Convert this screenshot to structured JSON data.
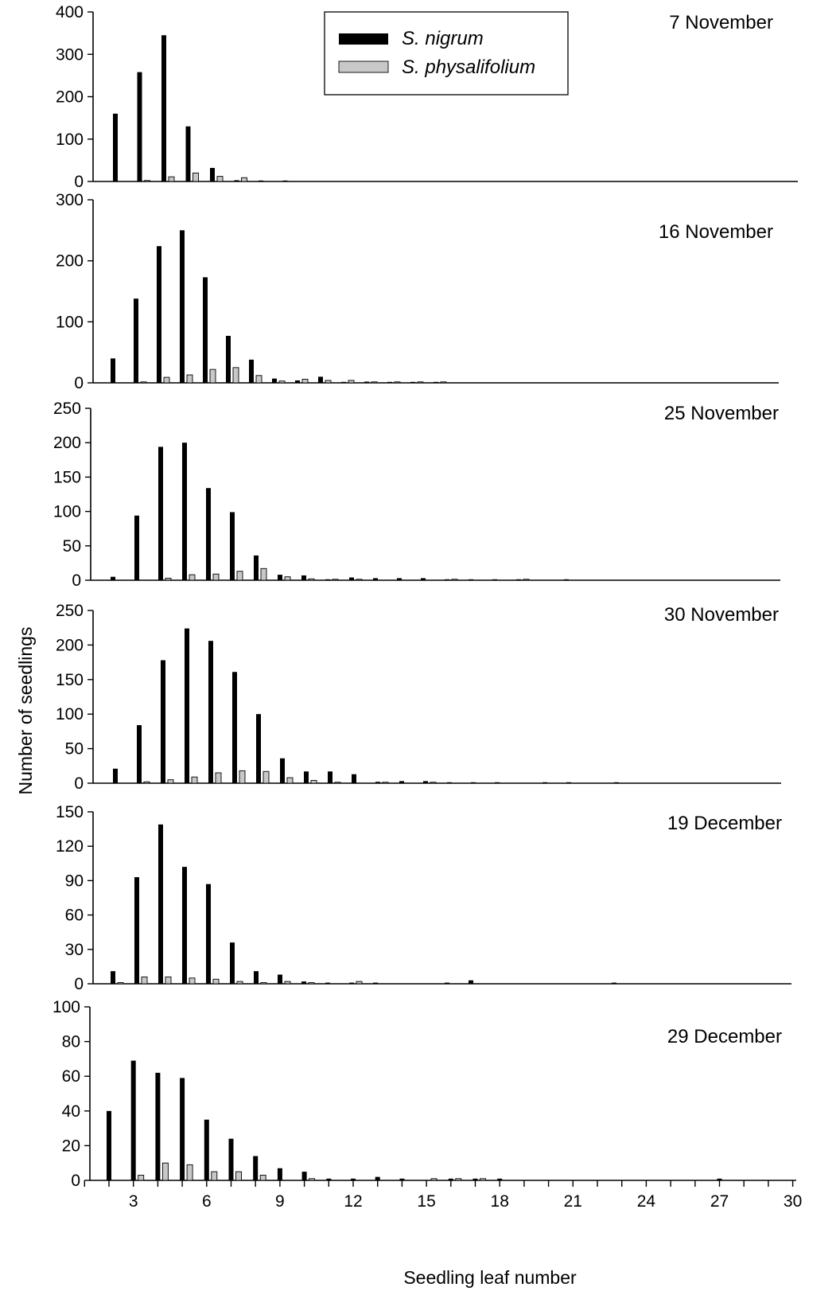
{
  "chart_data": {
    "type": "bar",
    "xlabel": "Seedling leaf number",
    "ylabel": "Number of seedlings",
    "xlim": [
      1,
      30
    ],
    "xticks": [
      3,
      6,
      9,
      12,
      15,
      18,
      21,
      24,
      27,
      30
    ],
    "legend": {
      "placement": "top-center",
      "entries": [
        {
          "name": "S. nigrum",
          "color": "#000000"
        },
        {
          "name": "S. physalifolium",
          "color": "#c8c8c8"
        }
      ]
    },
    "panels": [
      {
        "title": "7 November",
        "ylim": [
          0,
          400
        ],
        "yticks": [
          0,
          100,
          200,
          300,
          400
        ],
        "series": [
          {
            "name": "S. nigrum",
            "points": [
              [
                2,
                160
              ],
              [
                3,
                258
              ],
              [
                4,
                345
              ],
              [
                5,
                130
              ],
              [
                6,
                32
              ],
              [
                7,
                3
              ],
              [
                8,
                1
              ],
              [
                9,
                1
              ]
            ]
          },
          {
            "name": "S. physalifolium",
            "points": [
              [
                3,
                1
              ],
              [
                4,
                11
              ],
              [
                5,
                20
              ],
              [
                6,
                12
              ],
              [
                7,
                9
              ]
            ]
          }
        ]
      },
      {
        "title": "16 November",
        "ylim": [
          0,
          300
        ],
        "yticks": [
          0,
          100,
          200,
          300
        ],
        "series": [
          {
            "name": "S. nigrum",
            "points": [
              [
                2,
                40
              ],
              [
                3,
                138
              ],
              [
                4,
                224
              ],
              [
                5,
                250
              ],
              [
                6,
                173
              ],
              [
                7,
                77
              ],
              [
                8,
                38
              ],
              [
                9,
                7
              ],
              [
                10,
                4
              ],
              [
                11,
                10
              ],
              [
                12,
                1
              ],
              [
                13,
                2
              ],
              [
                14,
                1
              ],
              [
                15,
                1
              ],
              [
                16,
                1
              ]
            ]
          },
          {
            "name": "S. physalifolium",
            "points": [
              [
                3,
                1
              ],
              [
                4,
                9
              ],
              [
                5,
                13
              ],
              [
                6,
                22
              ],
              [
                7,
                25
              ],
              [
                8,
                12
              ],
              [
                9,
                3
              ],
              [
                10,
                6
              ],
              [
                11,
                4
              ],
              [
                12,
                4
              ],
              [
                13,
                1
              ],
              [
                14,
                1
              ],
              [
                15,
                1
              ],
              [
                16,
                1
              ]
            ]
          }
        ]
      },
      {
        "title": "25 November",
        "ylim": [
          0,
          250
        ],
        "yticks": [
          0,
          50,
          100,
          150,
          200,
          250
        ],
        "series": [
          {
            "name": "S. nigrum",
            "points": [
              [
                2,
                5
              ],
              [
                3,
                94
              ],
              [
                4,
                194
              ],
              [
                5,
                200
              ],
              [
                6,
                134
              ],
              [
                7,
                99
              ],
              [
                8,
                36
              ],
              [
                9,
                8
              ],
              [
                10,
                7
              ],
              [
                11,
                1
              ],
              [
                12,
                4
              ],
              [
                13,
                3
              ],
              [
                14,
                3
              ],
              [
                15,
                3
              ],
              [
                16,
                1
              ],
              [
                17,
                1
              ],
              [
                18,
                1
              ],
              [
                19,
                1
              ],
              [
                21,
                1
              ]
            ]
          },
          {
            "name": "S. physalifolium",
            "points": [
              [
                4,
                3
              ],
              [
                5,
                8
              ],
              [
                6,
                9
              ],
              [
                7,
                13
              ],
              [
                8,
                17
              ],
              [
                9,
                5
              ],
              [
                10,
                2
              ],
              [
                11,
                1
              ],
              [
                12,
                1
              ],
              [
                16,
                1
              ],
              [
                19,
                1
              ]
            ]
          }
        ]
      },
      {
        "title": "30 November",
        "ylim": [
          0,
          250
        ],
        "yticks": [
          0,
          50,
          100,
          150,
          200,
          250
        ],
        "series": [
          {
            "name": "S. nigrum",
            "points": [
              [
                2,
                21
              ],
              [
                3,
                84
              ],
              [
                4,
                178
              ],
              [
                5,
                224
              ],
              [
                6,
                206
              ],
              [
                7,
                161
              ],
              [
                8,
                100
              ],
              [
                9,
                36
              ],
              [
                10,
                17
              ],
              [
                11,
                17
              ],
              [
                12,
                13
              ],
              [
                13,
                2
              ],
              [
                14,
                3
              ],
              [
                15,
                3
              ],
              [
                16,
                1
              ],
              [
                17,
                1
              ],
              [
                18,
                1
              ],
              [
                20,
                1
              ],
              [
                21,
                1
              ],
              [
                23,
                1
              ]
            ]
          },
          {
            "name": "S. physalifolium",
            "points": [
              [
                3,
                2
              ],
              [
                4,
                5
              ],
              [
                5,
                9
              ],
              [
                6,
                15
              ],
              [
                7,
                18
              ],
              [
                8,
                17
              ],
              [
                9,
                8
              ],
              [
                10,
                4
              ],
              [
                11,
                1
              ],
              [
                13,
                1
              ],
              [
                15,
                1
              ]
            ]
          }
        ]
      },
      {
        "title": "19 December",
        "ylim": [
          0,
          150
        ],
        "yticks": [
          0,
          30,
          60,
          90,
          120,
          150
        ],
        "series": [
          {
            "name": "S. nigrum",
            "points": [
              [
                2,
                11
              ],
              [
                3,
                93
              ],
              [
                4,
                139
              ],
              [
                5,
                102
              ],
              [
                6,
                87
              ],
              [
                7,
                36
              ],
              [
                8,
                11
              ],
              [
                9,
                8
              ],
              [
                10,
                2
              ],
              [
                11,
                1
              ],
              [
                12,
                1
              ],
              [
                13,
                1
              ],
              [
                16,
                1
              ],
              [
                17,
                3
              ],
              [
                23,
                1
              ]
            ]
          },
          {
            "name": "S. physalifolium",
            "points": [
              [
                2,
                1
              ],
              [
                3,
                6
              ],
              [
                4,
                6
              ],
              [
                5,
                5
              ],
              [
                6,
                4
              ],
              [
                7,
                2
              ],
              [
                8,
                1
              ],
              [
                9,
                2
              ],
              [
                10,
                1
              ],
              [
                12,
                2
              ]
            ]
          }
        ]
      },
      {
        "title": "29 December",
        "ylim": [
          0,
          100
        ],
        "yticks": [
          0,
          20,
          40,
          60,
          80,
          100
        ],
        "series": [
          {
            "name": "S. nigrum",
            "points": [
              [
                2,
                40
              ],
              [
                3,
                69
              ],
              [
                4,
                62
              ],
              [
                5,
                59
              ],
              [
                6,
                35
              ],
              [
                7,
                24
              ],
              [
                8,
                14
              ],
              [
                9,
                7
              ],
              [
                10,
                5
              ],
              [
                11,
                1
              ],
              [
                12,
                1
              ],
              [
                13,
                2
              ],
              [
                14,
                1
              ],
              [
                16,
                1
              ],
              [
                17,
                1
              ],
              [
                18,
                1
              ],
              [
                27,
                1
              ]
            ]
          },
          {
            "name": "S. physalifolium",
            "points": [
              [
                3,
                3
              ],
              [
                4,
                10
              ],
              [
                5,
                9
              ],
              [
                6,
                5
              ],
              [
                7,
                5
              ],
              [
                8,
                3
              ],
              [
                10,
                1
              ],
              [
                15,
                1
              ],
              [
                16,
                1
              ],
              [
                17,
                1
              ]
            ]
          }
        ]
      }
    ]
  }
}
